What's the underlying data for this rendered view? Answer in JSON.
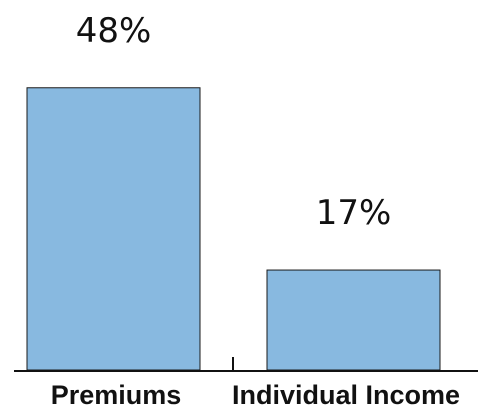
{
  "chart_data": {
    "type": "bar",
    "categories": [
      "Premiums",
      "Individual Income"
    ],
    "values": [
      48,
      17
    ],
    "value_labels": [
      "48%",
      "17%"
    ],
    "title": "",
    "xlabel": "",
    "ylabel": "",
    "ylim": [
      0,
      50
    ],
    "grid": false,
    "legend": "none",
    "bar_color": "#88b9e0",
    "edge_color": "#1a1a1a"
  }
}
